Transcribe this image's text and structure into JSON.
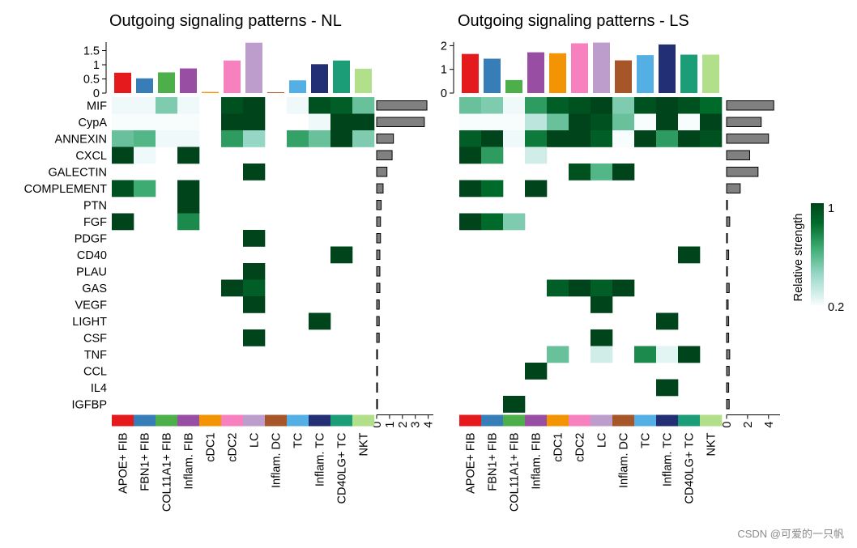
{
  "chart_data": [
    {
      "type": "heatmap",
      "title": "Outgoing signaling patterns - NL",
      "pathways": [
        "MIF",
        "CypA",
        "ANNEXIN",
        "CXCL",
        "GALECTIN",
        "COMPLEMENT",
        "PTN",
        "FGF",
        "PDGF",
        "CD40",
        "PLAU",
        "GAS",
        "VEGF",
        "LIGHT",
        "CSF",
        "TNF",
        "CCL",
        "IL4",
        "IGFBP"
      ],
      "cell_types": [
        "APOE+ FIB",
        "FBN1+ FIB",
        "COL11A1+ FIB",
        "Inflam. FIB",
        "cDC1",
        "cDC2",
        "LC",
        "Inflam. DC",
        "TC",
        "Inflam. TC",
        "CD40LG+ TC",
        "NKT"
      ],
      "top_bars": {
        "values": [
          0.72,
          0.52,
          0.73,
          0.87,
          0.04,
          1.15,
          1.78,
          0.03,
          0.45,
          1.02,
          1.15,
          0.86
        ],
        "ylim": [
          0,
          1.8
        ],
        "ticks": [
          0,
          0.5,
          1,
          1.5
        ],
        "tick_labels": [
          "0",
          "0.5",
          "1",
          "1.5"
        ]
      },
      "right_bars": {
        "values": [
          3.9,
          3.7,
          1.3,
          1.2,
          0.8,
          0.5,
          0.35,
          0.3,
          0.3,
          0.25,
          0.25,
          0.25,
          0.2,
          0.2,
          0.2,
          0.04,
          0.04,
          0.04,
          0.04
        ],
        "xlim": [
          0,
          4.4
        ],
        "ticks": [
          0,
          1,
          2,
          3,
          4
        ],
        "tick_labels": [
          "0",
          "1",
          "2",
          "3",
          "4"
        ]
      },
      "matrix": [
        [
          0.22,
          0.22,
          0.5,
          0.22,
          null,
          0.95,
          1.0,
          null,
          0.22,
          0.95,
          0.9,
          0.55
        ],
        [
          0.2,
          0.2,
          0.2,
          0.2,
          null,
          1.0,
          1.0,
          null,
          null,
          0.22,
          1.0,
          1.0
        ],
        [
          0.55,
          0.6,
          0.22,
          0.22,
          null,
          0.7,
          0.45,
          null,
          0.68,
          0.55,
          1.0,
          0.5
        ],
        [
          1.0,
          0.22,
          null,
          1.0,
          null,
          null,
          null,
          null,
          null,
          null,
          null,
          null
        ],
        [
          null,
          null,
          null,
          null,
          null,
          null,
          1.0,
          null,
          null,
          null,
          null,
          null
        ],
        [
          0.95,
          0.65,
          null,
          1.0,
          null,
          null,
          null,
          null,
          null,
          null,
          null,
          null
        ],
        [
          null,
          null,
          null,
          1.0,
          null,
          null,
          null,
          null,
          null,
          null,
          null,
          null
        ],
        [
          1.0,
          null,
          null,
          0.75,
          null,
          null,
          null,
          null,
          null,
          null,
          null,
          null
        ],
        [
          null,
          null,
          null,
          null,
          null,
          null,
          1.0,
          null,
          null,
          null,
          null,
          null
        ],
        [
          null,
          null,
          null,
          null,
          null,
          null,
          null,
          null,
          null,
          null,
          1.0,
          null
        ],
        [
          null,
          null,
          null,
          null,
          null,
          null,
          1.0,
          null,
          null,
          null,
          null,
          null
        ],
        [
          null,
          null,
          null,
          null,
          null,
          1.0,
          0.9,
          null,
          null,
          null,
          null,
          null
        ],
        [
          null,
          null,
          null,
          null,
          null,
          null,
          1.0,
          null,
          null,
          null,
          null,
          null
        ],
        [
          null,
          null,
          null,
          null,
          null,
          null,
          null,
          null,
          null,
          1.0,
          null,
          null
        ],
        [
          null,
          null,
          null,
          null,
          null,
          null,
          1.0,
          null,
          null,
          null,
          null,
          null
        ],
        [
          null,
          null,
          null,
          null,
          null,
          null,
          null,
          null,
          null,
          null,
          null,
          null
        ],
        [
          null,
          null,
          null,
          null,
          null,
          null,
          null,
          null,
          null,
          null,
          null,
          null
        ],
        [
          null,
          null,
          null,
          null,
          null,
          null,
          null,
          null,
          null,
          null,
          null,
          null
        ],
        [
          null,
          null,
          null,
          null,
          null,
          null,
          null,
          null,
          null,
          null,
          null,
          null
        ]
      ]
    },
    {
      "type": "heatmap",
      "title": "Outgoing signaling patterns - LS",
      "pathways": [
        "MIF",
        "CypA",
        "ANNEXIN",
        "CXCL",
        "GALECTIN",
        "COMPLEMENT",
        "PTN",
        "FGF",
        "PDGF",
        "CD40",
        "PLAU",
        "GAS",
        "VEGF",
        "LIGHT",
        "CSF",
        "TNF",
        "CCL",
        "IL4",
        "IGFBP"
      ],
      "cell_types": [
        "APOE+ FIB",
        "FBN1+ FIB",
        "COL11A1+ FIB",
        "Inflam. FIB",
        "cDC1",
        "cDC2",
        "LC",
        "Inflam. DC",
        "TC",
        "Inflam. TC",
        "CD40LG+ TC",
        "NKT"
      ],
      "top_bars": {
        "values": [
          1.65,
          1.45,
          0.55,
          1.72,
          1.68,
          2.1,
          2.13,
          1.38,
          1.6,
          2.05,
          1.62,
          1.62
        ],
        "ylim": [
          0,
          2.15
        ],
        "ticks": [
          0,
          1,
          2
        ],
        "tick_labels": [
          "0",
          "1",
          "2"
        ]
      },
      "right_bars": {
        "values": [
          4.5,
          3.3,
          4.0,
          2.2,
          3.0,
          1.3,
          0.04,
          0.3,
          0.04,
          0.2,
          0.04,
          0.25,
          0.15,
          0.2,
          0.2,
          0.3,
          0.25,
          0.2,
          0.25
        ],
        "xlim": [
          0,
          5.1
        ],
        "ticks": [
          0,
          2,
          4
        ],
        "tick_labels": [
          "0",
          "2",
          "4"
        ]
      },
      "matrix": [
        [
          0.55,
          0.5,
          0.22,
          0.7,
          0.9,
          0.95,
          1.0,
          0.5,
          0.95,
          1.0,
          0.95,
          0.85
        ],
        [
          0.2,
          0.2,
          0.2,
          0.35,
          0.55,
          1.0,
          0.95,
          0.55,
          0.2,
          1.0,
          0.2,
          1.0
        ],
        [
          0.9,
          1.0,
          0.22,
          0.8,
          1.0,
          1.0,
          0.9,
          0.2,
          1.0,
          0.7,
          1.0,
          0.95
        ],
        [
          1.0,
          0.7,
          null,
          0.3,
          null,
          null,
          null,
          null,
          null,
          null,
          null,
          null
        ],
        [
          null,
          null,
          null,
          null,
          null,
          0.95,
          0.6,
          1.0,
          null,
          null,
          null,
          null
        ],
        [
          1.0,
          0.85,
          null,
          1.0,
          null,
          null,
          null,
          null,
          null,
          null,
          null,
          null
        ],
        [
          null,
          null,
          null,
          null,
          null,
          null,
          null,
          null,
          null,
          null,
          null,
          null
        ],
        [
          1.0,
          0.85,
          0.5,
          null,
          null,
          null,
          null,
          null,
          null,
          null,
          null,
          null
        ],
        [
          null,
          null,
          null,
          null,
          null,
          null,
          null,
          null,
          null,
          null,
          null,
          null
        ],
        [
          null,
          null,
          null,
          null,
          null,
          null,
          null,
          null,
          null,
          null,
          1.0,
          null
        ],
        [
          null,
          null,
          null,
          null,
          null,
          null,
          null,
          null,
          null,
          null,
          null,
          null
        ],
        [
          null,
          null,
          null,
          null,
          0.9,
          1.0,
          0.9,
          1.0,
          null,
          null,
          null,
          null
        ],
        [
          null,
          null,
          null,
          null,
          null,
          null,
          1.0,
          null,
          null,
          null,
          null,
          null
        ],
        [
          null,
          null,
          null,
          null,
          null,
          null,
          null,
          null,
          null,
          1.0,
          null,
          null
        ],
        [
          null,
          null,
          null,
          null,
          null,
          null,
          1.0,
          null,
          null,
          null,
          null,
          null
        ],
        [
          null,
          null,
          null,
          null,
          0.55,
          null,
          0.3,
          null,
          0.75,
          0.25,
          1.0,
          null
        ],
        [
          null,
          null,
          null,
          1.0,
          null,
          null,
          null,
          null,
          null,
          null,
          null,
          null
        ],
        [
          null,
          null,
          null,
          null,
          null,
          null,
          null,
          null,
          null,
          1.0,
          null,
          null
        ],
        [
          null,
          null,
          1.0,
          null,
          null,
          null,
          null,
          null,
          null,
          null,
          null,
          null
        ]
      ]
    }
  ],
  "cell_colors": [
    "#e41a1c",
    "#377eb8",
    "#4daf4a",
    "#984ea3",
    "#f29403",
    "#f781bf",
    "#bc9dcc",
    "#a65628",
    "#54b0e4",
    "#222f75",
    "#1b9e77",
    "#b2df8a"
  ],
  "legend": {
    "title": "Relative strength",
    "max_label": "1",
    "min_label": "0.2",
    "high_color": "#00441b",
    "low_color": "#f7fcfd"
  },
  "watermark": "CSDN @可爱的一只帆"
}
